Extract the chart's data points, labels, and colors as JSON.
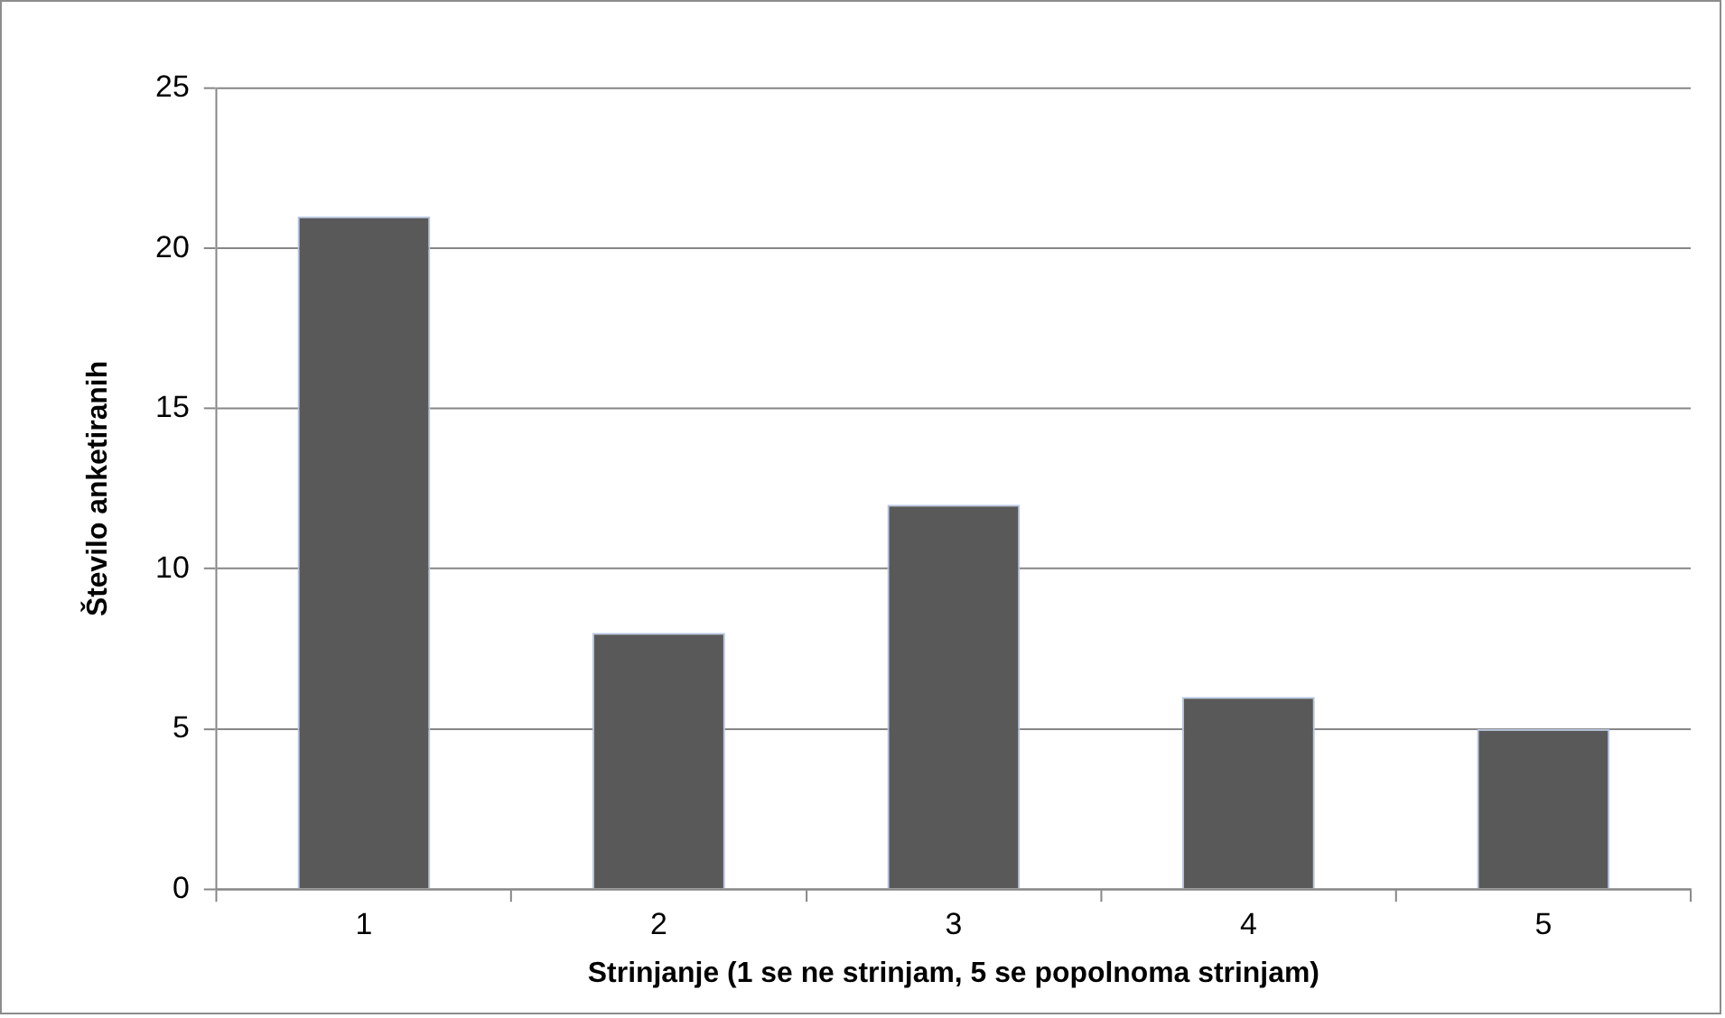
{
  "chart_data": {
    "type": "bar",
    "xlabel": "Strinjanje (1 se ne strinjam, 5 se popolnoma strinjam)",
    "ylabel": "Število anketiranih",
    "categories": [
      "1",
      "2",
      "3",
      "4",
      "5"
    ],
    "values": [
      21,
      8,
      12,
      6,
      5
    ],
    "color": "#595959",
    "ylim": [
      0,
      25
    ],
    "yticks": [
      0,
      5,
      10,
      15,
      20,
      25
    ],
    "grid": "y",
    "legend": false
  }
}
